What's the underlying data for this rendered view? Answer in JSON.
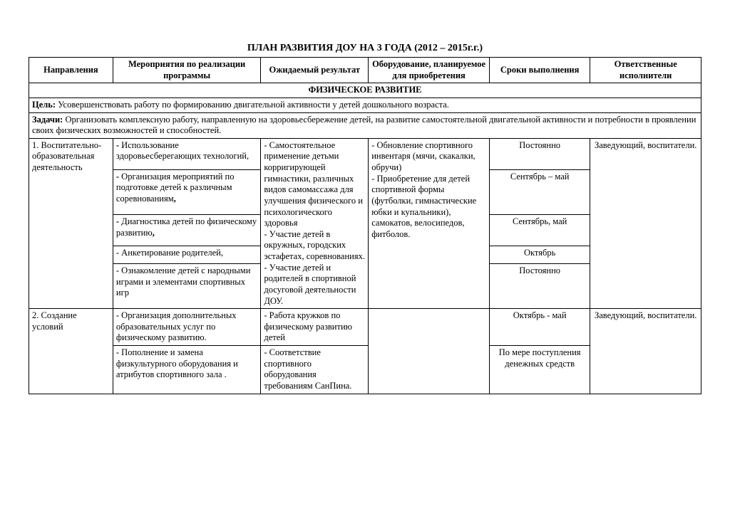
{
  "title": "ПЛАН РАЗВИТИЯ ДОУ НА 3 ГОДА (2012 – 2015г.г.)",
  "headers": {
    "directions": "Направления",
    "activities": "Мероприятия по реализации программы",
    "expected": "Ожидаемый результат",
    "equipment": "Оборудование, планируемое для приобретения",
    "timing": "Сроки выполнения",
    "responsible": "Ответственные исполнители"
  },
  "section_header": "ФИЗИЧЕСКОЕ РАЗВИТИЕ",
  "goal_label": "Цель:",
  "goal_text": " Усовершенствовать работу по формированию двигательной активности у детей дошкольного возраста.",
  "tasks_label": "Задачи:",
  "tasks_text": " Организовать комплексную работу, направленную на здоровьесбережение детей, на развитие самостоятельной двигательной активности и потребности в проявлении своих физических возможностей и способностей.",
  "row1": {
    "direction": "1. Воспитательно-образовательная деятельность",
    "act1": "- Использование здоровьесберегающих технологий,",
    "act2": "- Организация мероприятий по подготовке детей к различным соревнованиям,",
    "act3": "- Диагностика детей по физическому развитию,",
    "act4": "- Анкетирование родителей,",
    "act5": "- Ознакомление детей с народными играми и элементами спортивных игр",
    "expected": "- Самостоятельное применение детьми корригирующей гимнастики, различных видов самомассажа для улучшения физического и психологического здоровья\n- Участие детей в окружных, городских эстафетах, соревнованиях.\n- Участие детей и родителей в спортивной досуговой деятельности ДОУ.",
    "equipment": "- Обновление спортивного инвентаря (мячи, скакалки, обручи)\n- Приобретение для детей спортивной формы (футболки, гимнастические юбки и купальники), самокатов, велосипедов, фитболов.",
    "time1": "Постоянно",
    "time2": "Сентябрь – май",
    "time3": "Сентябрь, май",
    "time4": "Октябрь",
    "time5": "Постоянно",
    "responsible": "Заведующий, воспитатели."
  },
  "row2": {
    "direction": "2. Создание условий",
    "act1": "- Организация дополнительных образовательных услуг по физическому развитию.",
    "act2": "- Пополнение и замена физкультурного оборудования и атрибутов спортивного зала .",
    "exp1": "- Работа кружков по физическому развитию детей",
    "exp2": "- Соответствие спортивного оборудования требованиям СанПина.",
    "time1": "Октябрь - май",
    "time2": "По мере поступления денежных средств",
    "responsible": "Заведующий, воспитатели."
  }
}
